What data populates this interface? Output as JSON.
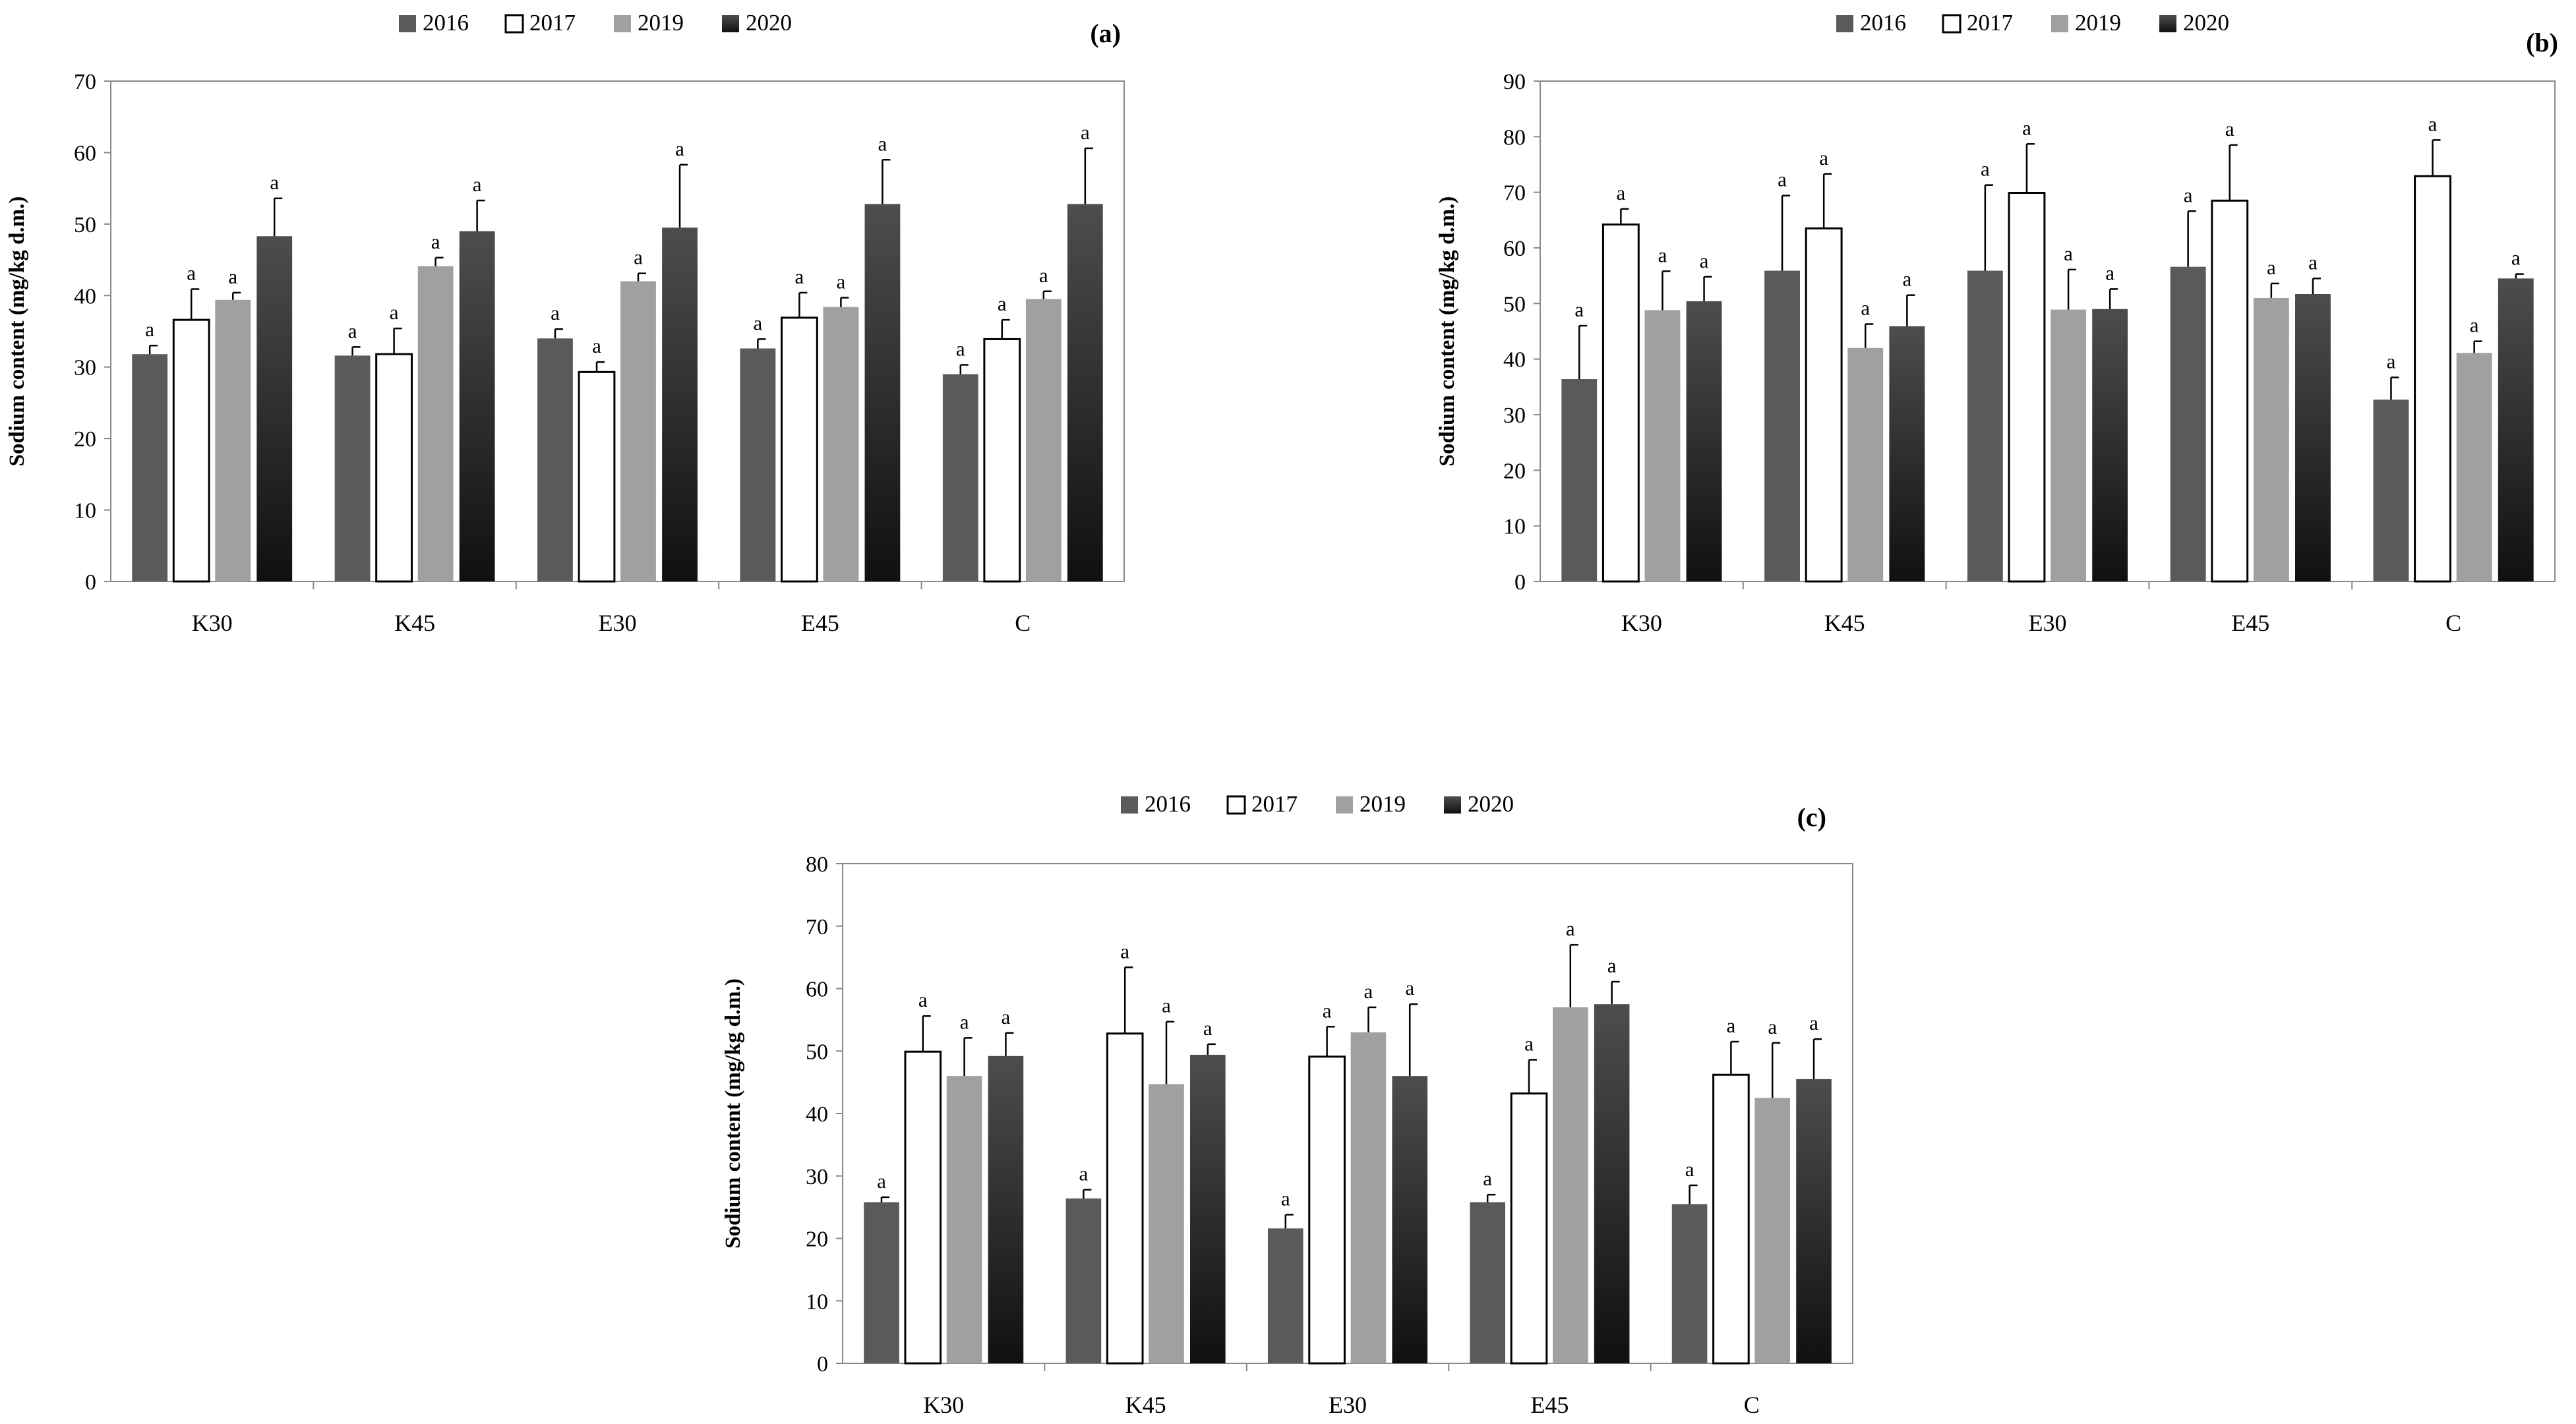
{
  "colors": {
    "s2016": "#5a5a5a",
    "s2017": "#ffffff",
    "s2019": "#a0a0a0",
    "s2020_top": "#4d4d4d",
    "s2020_bottom": "#101010",
    "stroke": "#000000",
    "axis": "#888888"
  },
  "chart_data": [
    {
      "type": "bar",
      "panel_label": "(a)",
      "ylabel": "Sodium content (mg/kg d.m.)",
      "ylim": [
        0,
        70
      ],
      "yticks": [
        0,
        10,
        20,
        30,
        40,
        50,
        60,
        70
      ],
      "categories": [
        "K30",
        "K45",
        "E30",
        "E45",
        "C"
      ],
      "series": [
        {
          "name": "2016",
          "values": [
            31.8,
            31.6,
            34.0,
            32.6,
            29.0
          ],
          "errors": [
            1.2,
            1.2,
            1.3,
            1.3,
            1.3
          ],
          "labels": [
            "a",
            "a",
            "a",
            "a",
            "a"
          ]
        },
        {
          "name": "2017",
          "values": [
            36.6,
            31.8,
            29.3,
            36.9,
            33.9
          ],
          "errors": [
            4.3,
            3.6,
            1.4,
            3.5,
            2.7
          ],
          "labels": [
            "a",
            "a",
            "a",
            "a",
            "a"
          ]
        },
        {
          "name": "2019",
          "values": [
            39.4,
            44.1,
            42.0,
            38.4,
            39.5
          ],
          "errors": [
            1.0,
            1.2,
            1.1,
            1.3,
            1.1
          ],
          "labels": [
            "a",
            "a",
            "a",
            "a",
            "a"
          ]
        },
        {
          "name": "2020",
          "values": [
            48.3,
            49.0,
            49.5,
            52.8,
            52.8
          ],
          "errors": [
            5.3,
            4.3,
            8.8,
            6.2,
            7.8
          ],
          "labels": [
            "a",
            "a",
            "a",
            "a",
            "a"
          ]
        }
      ]
    },
    {
      "type": "bar",
      "panel_label": "(b)",
      "ylabel": "Sodium content (mg/kg d.m.)",
      "ylim": [
        0,
        90
      ],
      "yticks": [
        0,
        10,
        20,
        30,
        40,
        50,
        60,
        70,
        80,
        90
      ],
      "categories": [
        "K30",
        "K45",
        "E30",
        "E45",
        "C"
      ],
      "series": [
        {
          "name": "2016",
          "values": [
            36.4,
            55.9,
            55.9,
            56.6,
            32.7
          ],
          "errors": [
            9.6,
            13.5,
            15.4,
            10.0,
            4.0
          ],
          "labels": [
            "a",
            "a",
            "a",
            "a",
            "a"
          ]
        },
        {
          "name": "2017",
          "values": [
            64.2,
            63.5,
            69.9,
            68.5,
            72.9
          ],
          "errors": [
            2.8,
            9.8,
            8.8,
            10.0,
            6.5
          ],
          "labels": [
            "a",
            "a",
            "a",
            "a",
            "a"
          ]
        },
        {
          "name": "2019",
          "values": [
            48.8,
            42.0,
            48.9,
            51.0,
            41.1
          ],
          "errors": [
            7.0,
            4.3,
            7.2,
            2.6,
            2.1
          ],
          "labels": [
            "a",
            "a",
            "a",
            "a",
            "a"
          ]
        },
        {
          "name": "2020",
          "values": [
            50.4,
            45.9,
            49.0,
            51.7,
            54.5
          ],
          "errors": [
            4.4,
            5.6,
            3.6,
            2.8,
            0.8
          ],
          "labels": [
            "a",
            "a",
            "a",
            "a",
            "a"
          ]
        }
      ]
    },
    {
      "type": "bar",
      "panel_label": "(c)",
      "ylabel": "Sodium content (mg/kg d.m.)",
      "ylim": [
        0,
        80
      ],
      "yticks": [
        0,
        10,
        20,
        30,
        40,
        50,
        60,
        70,
        80
      ],
      "categories": [
        "K30",
        "K45",
        "E30",
        "E45",
        "C"
      ],
      "series": [
        {
          "name": "2016",
          "values": [
            25.8,
            26.4,
            21.6,
            25.8,
            25.5
          ],
          "errors": [
            0.8,
            1.4,
            2.2,
            1.2,
            3.0
          ],
          "labels": [
            "a",
            "a",
            "a",
            "a",
            "a"
          ]
        },
        {
          "name": "2017",
          "values": [
            49.9,
            52.8,
            49.1,
            43.2,
            46.2
          ],
          "errors": [
            5.7,
            10.6,
            4.8,
            5.4,
            5.3
          ],
          "labels": [
            "a",
            "a",
            "a",
            "a",
            "a"
          ]
        },
        {
          "name": "2019",
          "values": [
            46.0,
            44.7,
            53.0,
            57.0,
            42.5
          ],
          "errors": [
            6.1,
            10.0,
            4.0,
            10.0,
            8.8
          ],
          "labels": [
            "a",
            "a",
            "a",
            "a",
            "a"
          ]
        },
        {
          "name": "2020",
          "values": [
            49.2,
            49.4,
            46.0,
            57.5,
            45.5
          ],
          "errors": [
            3.7,
            1.7,
            11.5,
            3.6,
            6.4
          ],
          "labels": [
            "a",
            "a",
            "a",
            "a",
            "a"
          ]
        }
      ]
    }
  ]
}
